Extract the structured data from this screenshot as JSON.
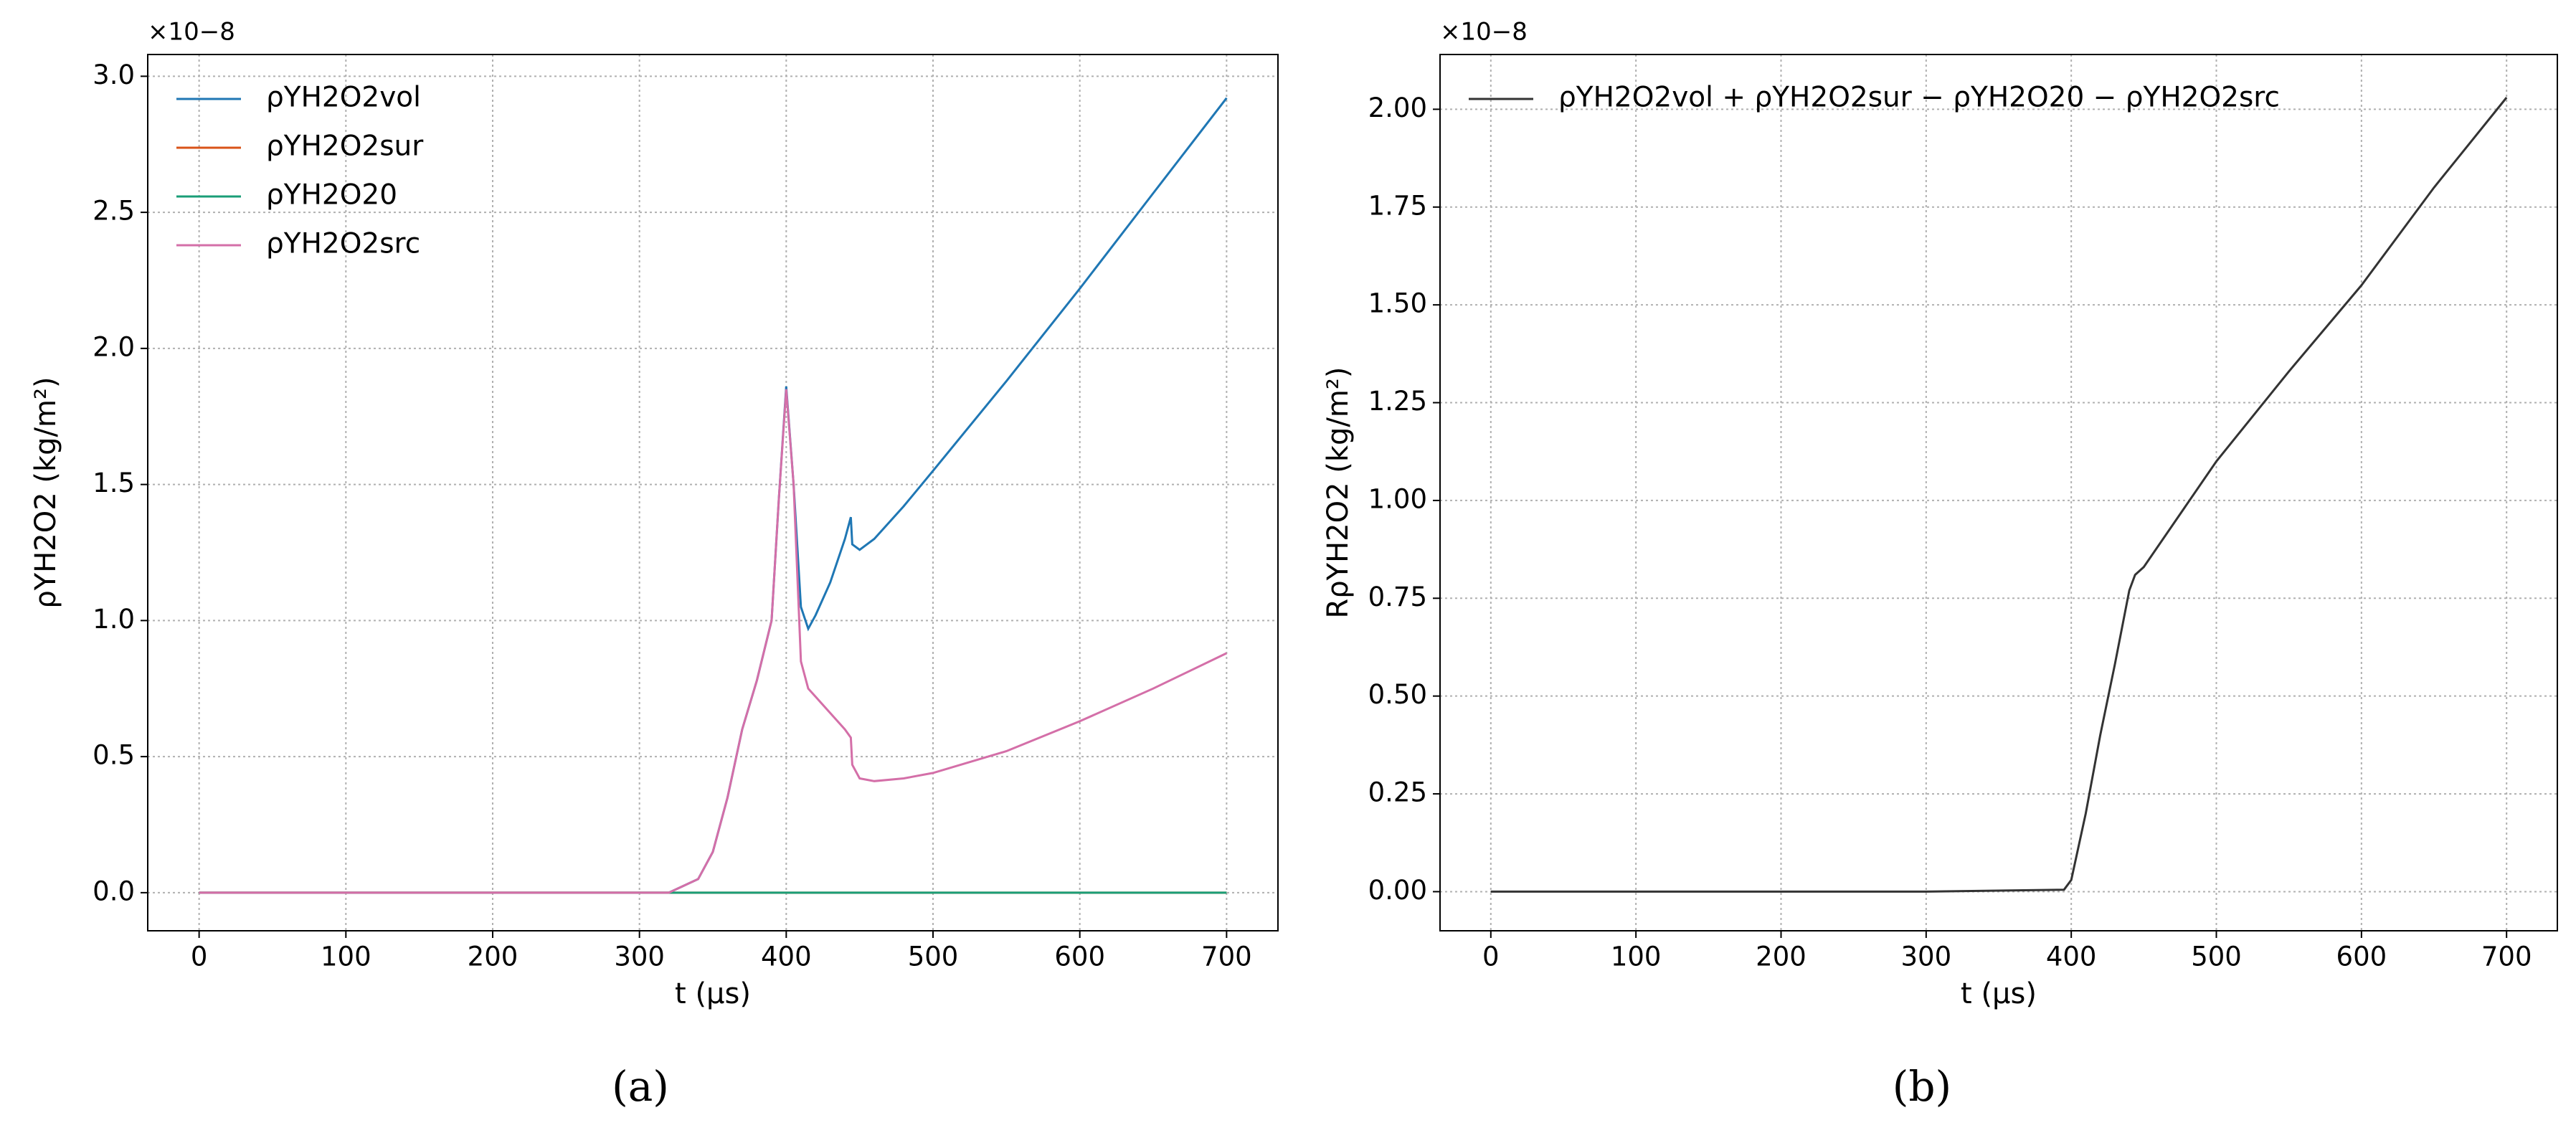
{
  "chart_data": [
    {
      "type": "line",
      "caption": "(a)",
      "xlabel": "t (μs)",
      "ylabel": "ρYH2O2 (kg/m²)",
      "offset_text": "×10−8",
      "x": [
        0,
        100,
        200,
        300,
        320,
        340,
        350,
        360,
        370,
        380,
        390,
        395,
        400,
        405,
        410,
        415,
        420,
        430,
        440,
        444,
        445,
        450,
        460,
        480,
        500,
        550,
        600,
        650,
        700
      ],
      "series": [
        {
          "name": "ρYH2O2vol",
          "color": "#1f77b4",
          "values": [
            0,
            0,
            0,
            0,
            0,
            0.05,
            0.15,
            0.35,
            0.6,
            0.78,
            1.0,
            1.45,
            1.86,
            1.5,
            1.05,
            0.97,
            1.02,
            1.14,
            1.3,
            1.38,
            1.28,
            1.26,
            1.3,
            1.42,
            1.55,
            1.88,
            2.22,
            2.57,
            2.92
          ]
        },
        {
          "name": "ρYH2O2sur",
          "color": "#d95319",
          "values": [
            0,
            0,
            0,
            0,
            0,
            0,
            0,
            0,
            0,
            0,
            0,
            0,
            0,
            0,
            0,
            0,
            0,
            0,
            0,
            0,
            0,
            0,
            0,
            0,
            0,
            0,
            0,
            0,
            0
          ]
        },
        {
          "name": "ρYH2O20",
          "color": "#1a9e77",
          "values": [
            0,
            0,
            0,
            0,
            0,
            0,
            0,
            0,
            0,
            0,
            0,
            0,
            0,
            0,
            0,
            0,
            0,
            0,
            0,
            0,
            0,
            0,
            0,
            0,
            0,
            0,
            0,
            0,
            0
          ]
        },
        {
          "name": "ρYH2O2src",
          "color": "#d46fa8",
          "values": [
            0,
            0,
            0,
            0,
            0,
            0.05,
            0.15,
            0.35,
            0.6,
            0.78,
            1.0,
            1.45,
            1.85,
            1.5,
            0.85,
            0.75,
            0.72,
            0.66,
            0.6,
            0.57,
            0.47,
            0.42,
            0.41,
            0.42,
            0.44,
            0.52,
            0.63,
            0.75,
            0.88
          ]
        }
      ],
      "xlim": [
        -35,
        735
      ],
      "ylim": [
        -0.14,
        3.08
      ],
      "xticks": [
        0,
        100,
        200,
        300,
        400,
        500,
        600,
        700
      ],
      "yticks": [
        {
          "value": 0,
          "label": "0.0"
        },
        {
          "value": 0.5,
          "label": "0.5"
        },
        {
          "value": 1,
          "label": "1.0"
        },
        {
          "value": 1.5,
          "label": "1.5"
        },
        {
          "value": 2,
          "label": "2.0"
        },
        {
          "value": 2.5,
          "label": "2.5"
        },
        {
          "value": 3,
          "label": "3.0"
        }
      ],
      "grid": true,
      "legend": "upper left"
    },
    {
      "type": "line",
      "caption": "(b)",
      "xlabel": "t (μs)",
      "ylabel": "RρYH2O2 (kg/m²)",
      "offset_text": "×10−8",
      "x": [
        0,
        100,
        200,
        300,
        395,
        400,
        410,
        420,
        430,
        440,
        444,
        450,
        500,
        550,
        600,
        650,
        700
      ],
      "series": [
        {
          "name": "ρYH2O2vol + ρYH2O2sur − ρYH2O20 − ρYH2O2src",
          "color": "#333333",
          "values": [
            0,
            0,
            0,
            0,
            0.005,
            0.03,
            0.2,
            0.4,
            0.58,
            0.77,
            0.81,
            0.83,
            1.1,
            1.33,
            1.55,
            1.8,
            2.03
          ]
        }
      ],
      "xlim": [
        -35,
        735
      ],
      "ylim": [
        -0.1,
        2.14
      ],
      "xticks": [
        0,
        100,
        200,
        300,
        400,
        500,
        600,
        700
      ],
      "yticks": [
        {
          "value": 0,
          "label": "0.00"
        },
        {
          "value": 0.25,
          "label": "0.25"
        },
        {
          "value": 0.5,
          "label": "0.50"
        },
        {
          "value": 0.75,
          "label": "0.75"
        },
        {
          "value": 1,
          "label": "1.00"
        },
        {
          "value": 1.25,
          "label": "1.25"
        },
        {
          "value": 1.5,
          "label": "1.50"
        },
        {
          "value": 1.75,
          "label": "1.75"
        },
        {
          "value": 2,
          "label": "2.00"
        }
      ],
      "grid": true,
      "legend": "upper left"
    }
  ]
}
